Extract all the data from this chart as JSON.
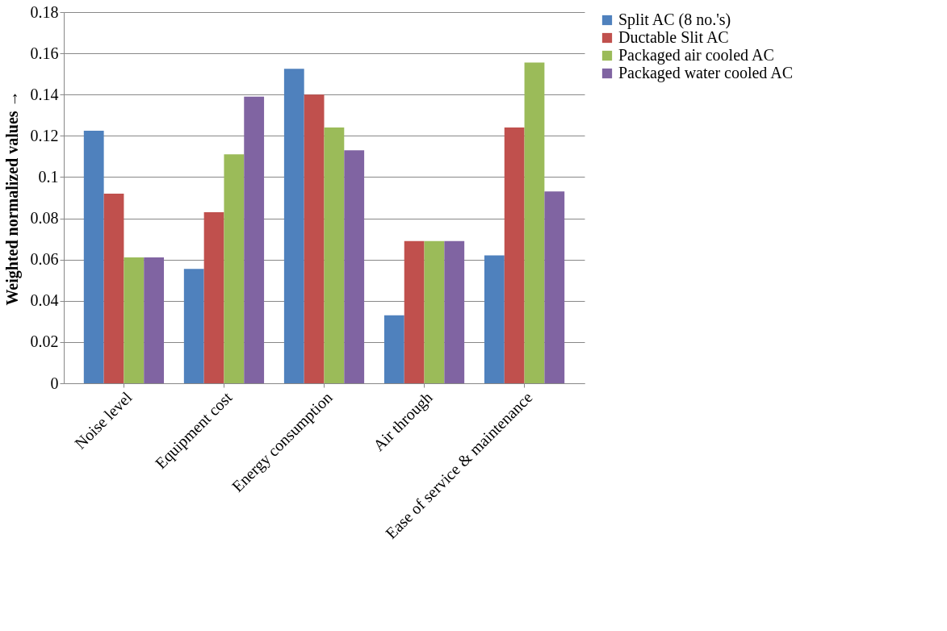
{
  "chart_data": {
    "type": "bar",
    "ylabel": "Weighted normalized values →",
    "categories": [
      "Noise level",
      "Equipment cost",
      "Energy consumption",
      "Air through",
      "Ease of service & maintenance"
    ],
    "series": [
      {
        "name": "Split AC (8 no.'s)",
        "color": "#4f81bd",
        "values": [
          0.1225,
          0.0555,
          0.1525,
          0.033,
          0.062
        ]
      },
      {
        "name": "Ductable Slit AC",
        "color": "#c0504d",
        "values": [
          0.092,
          0.083,
          0.14,
          0.069,
          0.124
        ]
      },
      {
        "name": "Packaged air cooled AC",
        "color": "#9bbb59",
        "values": [
          0.061,
          0.111,
          0.124,
          0.069,
          0.1555
        ]
      },
      {
        "name": "Packaged water cooled AC",
        "color": "#8064a2",
        "values": [
          0.061,
          0.139,
          0.113,
          0.069,
          0.093
        ]
      }
    ],
    "ylim": [
      0,
      0.18
    ],
    "yticks": [
      0,
      0.02,
      0.04,
      0.06,
      0.08,
      0.1,
      0.12,
      0.14,
      0.16,
      0.18
    ],
    "grid": "y",
    "legend": "right"
  }
}
